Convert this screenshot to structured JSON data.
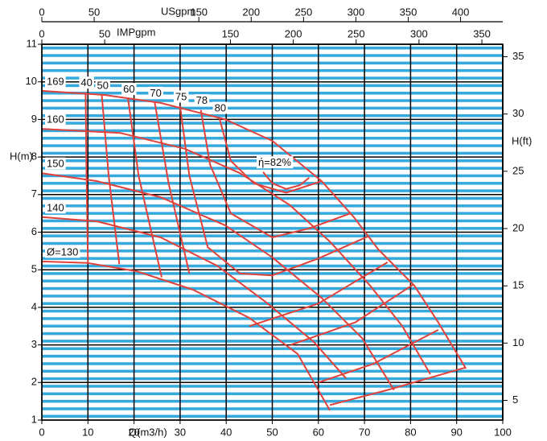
{
  "chart_data": {
    "type": "line",
    "xlabel": "Q(m3/h)",
    "ylabel": "H(m)",
    "y2label": "H(ft)",
    "xlim": [
      0,
      100
    ],
    "xticks": [
      0,
      10,
      20,
      30,
      40,
      50,
      60,
      70,
      80,
      90,
      100
    ],
    "ylim": [
      1,
      11
    ],
    "yticks": [
      1,
      2,
      3,
      4,
      5,
      6,
      7,
      8,
      9,
      10,
      11
    ],
    "y2lim": [
      3.281,
      36.09
    ],
    "y2ticks": [
      5,
      10,
      15,
      20,
      25,
      30,
      35
    ],
    "top_axes": [
      {
        "label": "USgpm",
        "lim": [
          0,
          440.3
        ],
        "ticks": [
          0,
          50,
          150,
          200,
          250,
          300,
          350,
          400
        ]
      },
      {
        "label": "IMPgpm",
        "lim": [
          0,
          366.6
        ],
        "ticks": [
          0,
          50,
          150,
          200,
          250,
          300,
          350
        ]
      }
    ],
    "grid": true,
    "grid_color": "#000000",
    "stripe_color": "#35a9dc",
    "series": [
      {
        "name": "169",
        "color": "#e0413b",
        "x": [
          0,
          13.6,
          25.8,
          39.8,
          50,
          60.7,
          67.7,
          73,
          80.8,
          86,
          92
        ],
        "values": [
          9.76,
          9.65,
          9.44,
          9.0,
          8.43,
          7.36,
          6.4,
          5.54,
          4.58,
          3.6,
          2.37
        ]
      },
      {
        "name": "160",
        "color": "#e0413b",
        "x": [
          0,
          17,
          31,
          43,
          53.8,
          62.5,
          71.2,
          78.2,
          84.3
        ],
        "values": [
          8.75,
          8.64,
          8.22,
          7.57,
          6.72,
          5.75,
          4.58,
          3.5,
          2.22
        ]
      },
      {
        "name": "150",
        "color": "#e0413b",
        "x": [
          0,
          11.9,
          25.8,
          39.8,
          50,
          60.7,
          69.5,
          76.4
        ],
        "values": [
          7.57,
          7.36,
          6.93,
          6.18,
          5.33,
          4.25,
          3.18,
          1.8
        ]
      },
      {
        "name": "140",
        "color": "#e0413b",
        "x": [
          0,
          11.9,
          25.8,
          38,
          48.5,
          59,
          66
        ],
        "values": [
          6.4,
          6.29,
          5.86,
          5.11,
          4.15,
          3.08,
          2.11
        ]
      },
      {
        "name": "Ø=130",
        "color": "#e0413b",
        "x": [
          0,
          10,
          20.6,
          32.8,
          45,
          55.5,
          62.5
        ],
        "values": [
          5.22,
          5.18,
          4.96,
          4.47,
          3.72,
          2.76,
          1.26
        ]
      },
      {
        "name": "40",
        "color": "#e0413b",
        "x": [
          9.5,
          9.7,
          10,
          null,
          62.5,
          75,
          92
        ],
        "values": [
          9.72,
          7.5,
          5.2,
          null,
          1.4,
          1.8,
          2.4
        ]
      },
      {
        "name": "50",
        "color": "#e0413b",
        "x": [
          13,
          14.5,
          16.8,
          null,
          60,
          72,
          86
        ],
        "values": [
          9.65,
          7.5,
          5.15,
          null,
          2.0,
          2.5,
          3.4
        ]
      },
      {
        "name": "60",
        "color": "#e0413b",
        "x": [
          18.7,
          21,
          26,
          null,
          54,
          68,
          80.5
        ],
        "values": [
          9.55,
          7.5,
          4.8,
          null,
          3.0,
          3.6,
          4.6
        ]
      },
      {
        "name": "70",
        "color": "#e0413b",
        "x": [
          24.5,
          27.5,
          32,
          null,
          45,
          60,
          75
        ],
        "values": [
          9.45,
          7.3,
          4.9,
          null,
          3.5,
          4.1,
          5.2
        ]
      },
      {
        "name": "75",
        "color": "#e0413b",
        "x": [
          30,
          32,
          36,
          43,
          50,
          60,
          71
        ],
        "values": [
          9.35,
          7.5,
          5.6,
          4.9,
          4.85,
          5.3,
          5.9
        ]
      },
      {
        "name": "78",
        "color": "#e0413b",
        "x": [
          34.5,
          36.5,
          41,
          50,
          58,
          67
        ],
        "values": [
          9.25,
          7.8,
          6.5,
          5.86,
          6.1,
          6.5
        ]
      },
      {
        "name": "80",
        "color": "#e0413b",
        "x": [
          38.5,
          41,
          46,
          53,
          60.5
        ],
        "values": [
          9.05,
          7.9,
          7.3,
          7.05,
          7.35
        ]
      },
      {
        "name": "ή=82%",
        "color": "#e0413b",
        "x": [
          48,
          50,
          53,
          56,
          58
        ],
        "values": [
          7.6,
          7.3,
          7.15,
          7.25,
          7.45
        ]
      }
    ]
  }
}
